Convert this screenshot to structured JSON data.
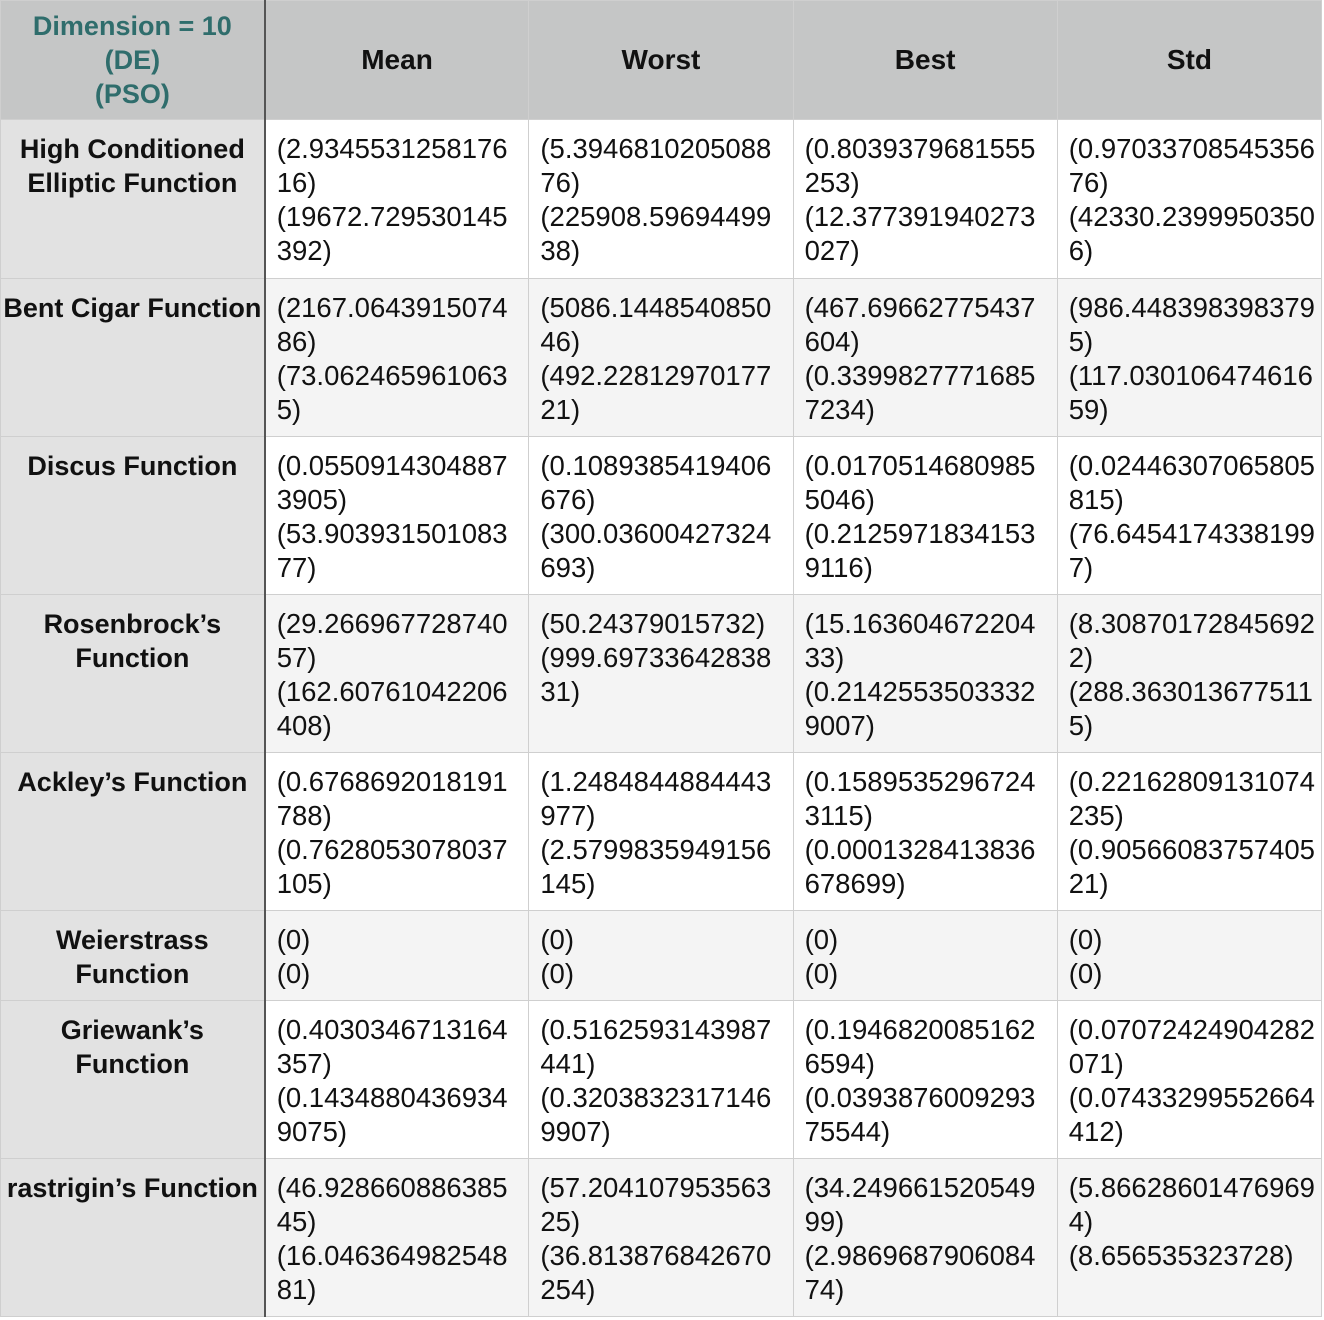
{
  "header": {
    "corner": [
      "Dimension = 10",
      "(DE)",
      "(PSO)"
    ],
    "columns": [
      "Mean",
      "Worst",
      "Best",
      "Std"
    ]
  },
  "rows": [
    {
      "name": "High Conditioned Elliptic Function",
      "cells": [
        [
          "(2.934553125817616)",
          "(19672.729530145392)"
        ],
        [
          "(5.394681020508876)",
          "(225908.5969449938)"
        ],
        [
          "(0.8039379681555253)",
          "(12.377391940273027)"
        ],
        [
          "(0.9703370854535676)",
          "(42330.23999503506)"
        ]
      ]
    },
    {
      "name": "Bent Cigar Function",
      "cells": [
        [
          "(2167.064391507486)",
          "(73.0624659610635)"
        ],
        [
          "(5086.144854085046)",
          "(492.2281297017721)"
        ],
        [
          "(467.69662775437604)",
          "(0.3399827771685 7234)"
        ],
        [
          "(986.4483983983795)",
          "(117.03010647461659)"
        ]
      ]
    },
    {
      "name": "Discus Function",
      "cells": [
        [
          "(0.05509143048873905)",
          "(53.90393150108377)"
        ],
        [
          "(0.1089385419406676)",
          "(300.03600427324693)"
        ],
        [
          "(0.01705146809855046)",
          "(0.21259718341539116)"
        ],
        [
          "(0.02446307065805815)",
          "(76.64541743381997)"
        ]
      ]
    },
    {
      "name": "Rosenbrock’s Function",
      "cells": [
        [
          "(29.26696772874057)",
          "(162.60761042206408)"
        ],
        [
          "(50.24379015732)",
          "(999.6973364283831)"
        ],
        [
          "(15.16360467220433)",
          "(0.21425535033329007)"
        ],
        [
          "(8.308701728456922)",
          "(288.3630136775115)"
        ]
      ]
    },
    {
      "name": "Ackley’s Function",
      "cells": [
        [
          "(0.6768692018191788)",
          "(0.7628053078037105)"
        ],
        [
          "(1.2484844884443977)",
          "(2.5799835949156145)"
        ],
        [
          "(0.15895352967243115)",
          "(0.0001328413836678699)"
        ],
        [
          "(0.22162809131074235)",
          "(0.9056608375740521)"
        ]
      ]
    },
    {
      "name": "Weierstrass Function",
      "cells": [
        [
          "(0)",
          "(0)"
        ],
        [
          "(0)",
          "(0)"
        ],
        [
          "(0)",
          "(0)"
        ],
        [
          "(0)",
          "(0)"
        ]
      ]
    },
    {
      "name": "Griewank’s Function",
      "cells": [
        [
          "(0.4030346713164357)",
          "(0.14348804369349075)"
        ],
        [
          "(0.5162593143987441)",
          "(0.32038323171469907)"
        ],
        [
          "(0.19468200851626594)",
          "(0.039387600929375544)"
        ],
        [
          "(0.07072424904282071)",
          "(0.07433299552664412)"
        ]
      ]
    },
    {
      "name": "rastrigin’s Function",
      "cells": [
        [
          "(46.92866088638545)",
          "(16.04636498254881)"
        ],
        [
          "(57.20410795356325)",
          "(36.813876842670254)"
        ],
        [
          "(34.24966152054999)",
          "(2.986968790608474)"
        ],
        [
          "(5.866286014769694)",
          "(8.656535323728)"
        ]
      ]
    }
  ]
}
